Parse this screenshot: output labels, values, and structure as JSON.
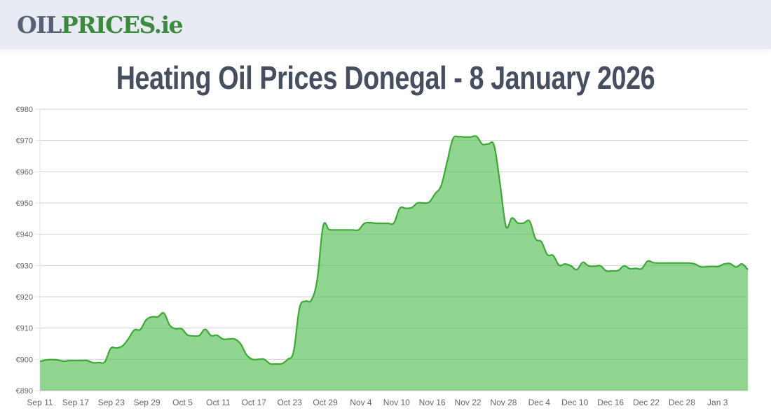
{
  "header": {
    "logo_part1": "OIL",
    "logo_part2": "PRICES.ie",
    "colors": {
      "logo_gray": "#556275",
      "logo_green": "#3a8c3c",
      "header_bg": "#e8ebf3"
    }
  },
  "page": {
    "title": "Heating Oil Prices Donegal - 8 January 2026"
  },
  "chart_data": {
    "type": "area",
    "title": "Heating Oil Prices Donegal - 8 January 2026",
    "xlabel": "",
    "ylabel": "",
    "ylim": [
      890,
      980
    ],
    "y_ticks": [
      "€890",
      "€900",
      "€910",
      "€920",
      "€930",
      "€940",
      "€950",
      "€960",
      "€970",
      "€980"
    ],
    "x_ticks": [
      "Sep 11",
      "Sep 17",
      "Sep 23",
      "Sep 29",
      "Oct 5",
      "Oct 11",
      "Oct 17",
      "Oct 23",
      "Oct 29",
      "Nov 4",
      "Nov 10",
      "Nov 16",
      "Nov 22",
      "Nov 28",
      "Dec 4",
      "Dec 10",
      "Dec 16",
      "Dec 22",
      "Dec 28",
      "Jan 3"
    ],
    "grid": true,
    "legend": "none",
    "line_color": "#3aaa35",
    "fill_color": "#90d590",
    "start_date": "Sep 11",
    "end_date": "Jan 8",
    "series": [
      {
        "name": "Donegal heating oil price (€)",
        "values": [
          899.3,
          899.8,
          899.9,
          899.8,
          899.4,
          899.6,
          899.6,
          899.6,
          899.6,
          898.9,
          899.0,
          899.2,
          903.5,
          903.6,
          904.3,
          906.6,
          909.4,
          909.5,
          912.6,
          913.6,
          913.6,
          914.8,
          910.9,
          909.8,
          909.8,
          907.8,
          907.5,
          907.6,
          909.6,
          907.6,
          907.7,
          906.5,
          906.5,
          906.5,
          905.0,
          901.5,
          900.0,
          900.0,
          900.0,
          898.6,
          898.5,
          898.6,
          900.0,
          902.5,
          916.4,
          918.6,
          918.9,
          925.5,
          942.6,
          941.5,
          941.4,
          941.4,
          941.4,
          941.4,
          941.4,
          943.5,
          943.7,
          943.5,
          943.5,
          943.5,
          943.6,
          948.3,
          948.3,
          948.5,
          950.0,
          950.0,
          950.3,
          953.0,
          955.5,
          963.0,
          970.5,
          971.2,
          971.1,
          971.1,
          971.3,
          968.8,
          968.9,
          968.3,
          956.0,
          942.5,
          945.2,
          943.6,
          943.6,
          944.2,
          938.6,
          937.6,
          933.5,
          933.2,
          930.1,
          930.5,
          929.9,
          928.7,
          931.0,
          929.9,
          929.8,
          929.9,
          928.3,
          928.3,
          928.4,
          929.9,
          929.0,
          929.1,
          929.0,
          931.4,
          930.9,
          930.8,
          930.8,
          930.8,
          930.8,
          930.8,
          930.8,
          930.5,
          929.6,
          929.6,
          929.7,
          929.7,
          930.5,
          930.6,
          929.5,
          930.5,
          928.7
        ]
      }
    ]
  }
}
